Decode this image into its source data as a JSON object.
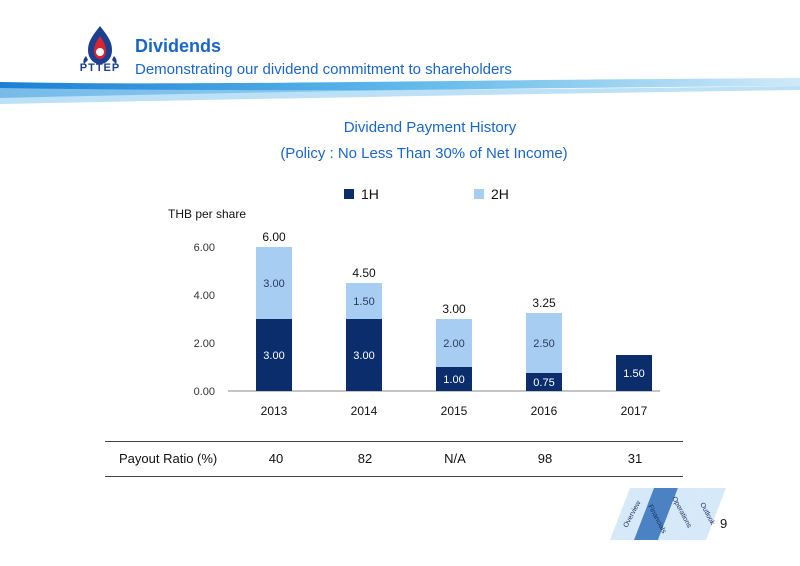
{
  "header": {
    "brand": "PTTEP",
    "title": "Dividends",
    "subtitle": "Demonstrating our dividend commitment to shareholders"
  },
  "colors": {
    "accent": "#1a66c8",
    "series_1h": "#0b2d6b",
    "series_2h": "#a8cdf2"
  },
  "chart_data": {
    "type": "bar",
    "stacked": true,
    "title": "Dividend Payment History",
    "subtitle": "(Policy : No Less Than 30% of Net Income)",
    "ylabel": "THB per share",
    "categories": [
      "2013",
      "2014",
      "2015",
      "2016",
      "2017"
    ],
    "series": [
      {
        "name": "1H",
        "values": [
          3.0,
          3.0,
          1.0,
          0.75,
          1.5
        ],
        "labels": [
          "3.00",
          "3.00",
          "1.00",
          "0.75",
          "1.50"
        ]
      },
      {
        "name": "2H",
        "values": [
          3.0,
          1.5,
          2.0,
          2.5,
          0
        ],
        "labels": [
          "3.00",
          "1.50",
          "2.00",
          "2.50",
          ""
        ]
      }
    ],
    "totals": [
      "6.00",
      "4.50",
      "3.00",
      "3.25",
      ""
    ],
    "yticks": [
      "0.00",
      "2.00",
      "4.00",
      "6.00"
    ],
    "ylim": [
      0,
      6.6
    ],
    "legend_position": "top",
    "grid": false
  },
  "payout": {
    "label": "Payout Ratio (%)",
    "values": [
      "40",
      "82",
      "N/A",
      "98",
      "31"
    ]
  },
  "nav": {
    "tabs": [
      "Overview",
      "Financials",
      "Operations",
      "Outlook"
    ],
    "active": "Financials"
  },
  "page_number": "9"
}
